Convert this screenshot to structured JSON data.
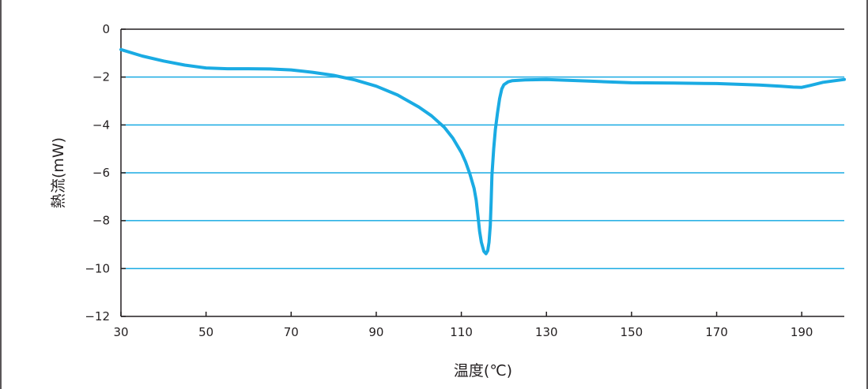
{
  "chart_data": {
    "type": "line",
    "title": "",
    "xlabel": "温度(℃)",
    "ylabel": "熱流(mW)",
    "xlim": [
      30,
      200
    ],
    "ylim": [
      -12,
      0
    ],
    "x_ticks": [
      30,
      50,
      70,
      90,
      110,
      130,
      150,
      170,
      190
    ],
    "y_ticks": [
      0,
      -2,
      -4,
      -6,
      -8,
      -10,
      -12
    ],
    "y_tick_labels": [
      "0",
      "−2",
      "−4",
      "−6",
      "−8",
      "−10",
      "−12"
    ],
    "grid": "horizontal",
    "line_color": "#1aabe3",
    "grid_color": "#1aabe3",
    "series": [
      {
        "x": [
          30,
          35,
          40,
          45,
          50,
          55,
          60,
          65,
          70,
          75,
          80,
          85,
          90,
          95,
          100,
          103,
          106,
          108,
          110,
          111,
          112,
          113,
          113.5,
          114,
          114.3,
          114.7,
          115.3,
          115.8,
          116.2,
          116.5,
          116.8,
          117,
          117.2,
          117.6,
          118,
          118.5,
          119,
          119.5,
          120,
          121,
          122,
          125,
          130,
          140,
          150,
          160,
          170,
          180,
          185,
          188,
          190,
          192,
          195,
          200
        ],
        "y": [
          -0.85,
          -1.12,
          -1.33,
          -1.5,
          -1.62,
          -1.65,
          -1.65,
          -1.66,
          -1.7,
          -1.8,
          -1.93,
          -2.12,
          -2.38,
          -2.75,
          -3.25,
          -3.62,
          -4.1,
          -4.55,
          -5.15,
          -5.55,
          -6.05,
          -6.65,
          -7.15,
          -7.95,
          -8.45,
          -8.9,
          -9.28,
          -9.38,
          -9.25,
          -8.9,
          -8.2,
          -7.2,
          -6.1,
          -5.0,
          -4.2,
          -3.5,
          -2.9,
          -2.5,
          -2.32,
          -2.2,
          -2.15,
          -2.12,
          -2.1,
          -2.17,
          -2.24,
          -2.25,
          -2.27,
          -2.33,
          -2.38,
          -2.42,
          -2.43,
          -2.35,
          -2.22,
          -2.1
        ]
      }
    ]
  }
}
